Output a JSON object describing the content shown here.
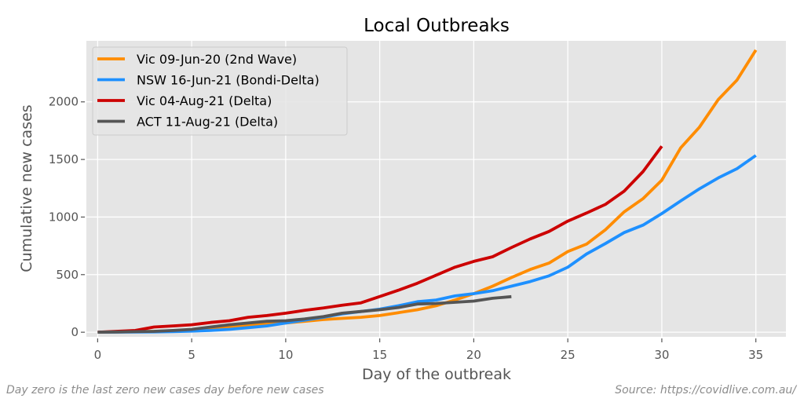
{
  "chart_data": {
    "type": "line",
    "title": "Local Outbreaks",
    "xlabel": "Day of the outbreak",
    "ylabel": "Cumulative new cases",
    "xlim": [
      -0.6,
      36.6
    ],
    "ylim": [
      -40,
      2530
    ],
    "xticks": [
      0,
      5,
      10,
      15,
      20,
      25,
      30,
      35
    ],
    "yticks": [
      0,
      500,
      1000,
      1500,
      2000
    ],
    "grid": true,
    "legend_position": "top-left",
    "series": [
      {
        "name": "Vic 09-Jun-20 (2nd Wave)",
        "color": "#ff8c00",
        "x": [
          0,
          1,
          2,
          3,
          4,
          5,
          6,
          7,
          8,
          9,
          10,
          11,
          12,
          13,
          14,
          15,
          16,
          17,
          18,
          19,
          20,
          21,
          22,
          23,
          24,
          25,
          26,
          27,
          28,
          29,
          30,
          31,
          32,
          33,
          34,
          35
        ],
        "values": [
          0,
          3,
          5,
          8,
          12,
          20,
          30,
          45,
          60,
          70,
          80,
          95,
          110,
          120,
          130,
          145,
          170,
          195,
          230,
          280,
          335,
          400,
          475,
          545,
          600,
          700,
          765,
          890,
          1045,
          1160,
          1320,
          1600,
          1780,
          2020,
          2190,
          2450
        ]
      },
      {
        "name": "NSW 16-Jun-21 (Bondi-Delta)",
        "color": "#1e90ff",
        "x": [
          0,
          1,
          2,
          3,
          4,
          5,
          6,
          7,
          8,
          9,
          10,
          11,
          12,
          13,
          14,
          15,
          16,
          17,
          18,
          19,
          20,
          21,
          22,
          23,
          24,
          25,
          26,
          27,
          28,
          29,
          30,
          31,
          32,
          33,
          34,
          35
        ],
        "values": [
          0,
          1,
          2,
          3,
          5,
          10,
          15,
          25,
          40,
          55,
          80,
          105,
          130,
          160,
          180,
          200,
          230,
          265,
          280,
          315,
          335,
          360,
          400,
          440,
          490,
          565,
          680,
          770,
          865,
          930,
          1030,
          1140,
          1245,
          1340,
          1420,
          1535
        ]
      },
      {
        "name": "Vic 04-Aug-21 (Delta)",
        "color": "#cc0000",
        "x": [
          0,
          1,
          2,
          3,
          4,
          5,
          6,
          7,
          8,
          9,
          10,
          11,
          12,
          13,
          14,
          15,
          16,
          17,
          18,
          19,
          20,
          21,
          22,
          23,
          24,
          25,
          26,
          27,
          28,
          29,
          30
        ],
        "values": [
          0,
          8,
          15,
          45,
          55,
          65,
          85,
          100,
          130,
          145,
          165,
          190,
          210,
          235,
          255,
          310,
          365,
          425,
          495,
          565,
          615,
          655,
          735,
          810,
          875,
          965,
          1035,
          1110,
          1225,
          1395,
          1615
        ]
      },
      {
        "name": "ACT 11-Aug-21 (Delta)",
        "color": "#555555",
        "x": [
          0,
          1,
          2,
          3,
          4,
          5,
          6,
          7,
          8,
          9,
          10,
          11,
          12,
          13,
          14,
          15,
          16,
          17,
          18,
          19,
          20,
          21,
          22
        ],
        "values": [
          0,
          2,
          5,
          8,
          15,
          25,
          45,
          65,
          80,
          95,
          100,
          115,
          135,
          165,
          180,
          195,
          215,
          245,
          250,
          260,
          270,
          295,
          309
        ]
      }
    ]
  },
  "footnote": {
    "left": "Day zero is the last zero new cases day before new cases",
    "right": "Source: https://covidlive.com.au/"
  },
  "style": {
    "plot_background": "#e5e5e5",
    "grid_color": "#ffffff",
    "text_color": "#555555"
  }
}
